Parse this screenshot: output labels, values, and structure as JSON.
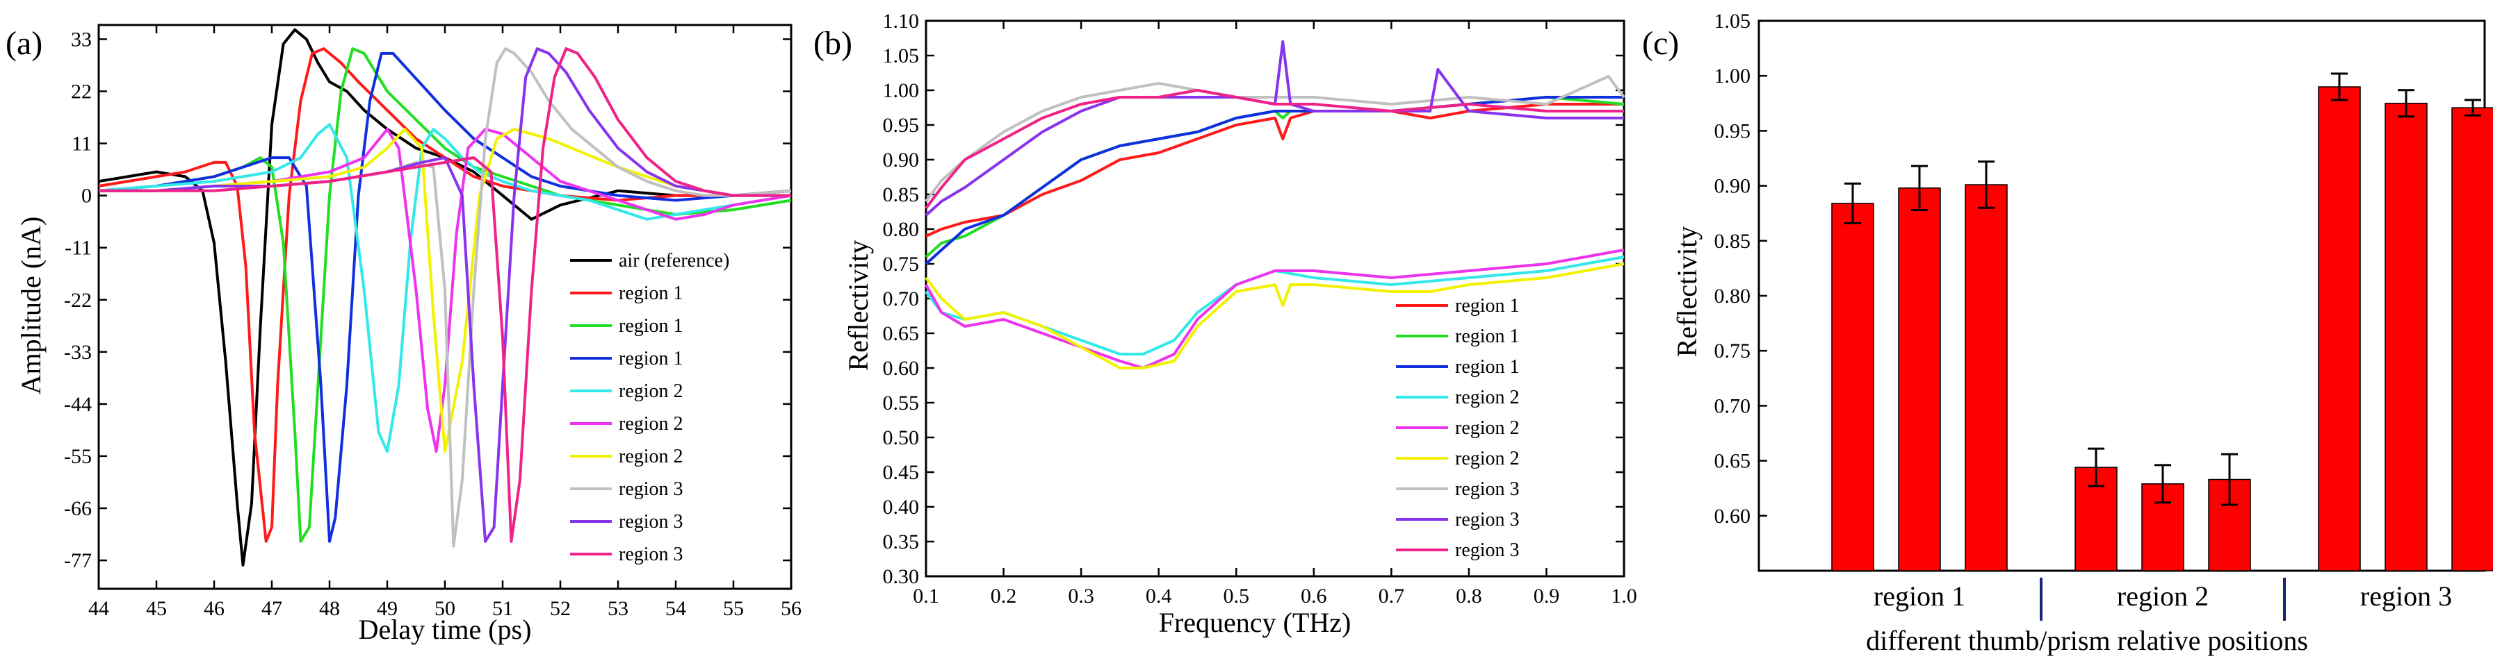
{
  "colors": {
    "black": "#000000",
    "red": "#ff1a1a",
    "green": "#22dd22",
    "blue": "#1030e0",
    "cyan": "#33e8e8",
    "magenta": "#ee33ee",
    "yellow": "#f2f200",
    "gray": "#c0c0c0",
    "purple": "#8833ee",
    "pink": "#ee2288",
    "bar": "#ff0000",
    "divider": "#1a237e"
  },
  "chart_data": [
    {
      "type": "line",
      "panel_label": "(a)",
      "xlabel": "Delay time (ps)",
      "ylabel": "Amplitude (nA)",
      "xlim": [
        44,
        56
      ],
      "ylim": [
        -83,
        36
      ],
      "xticks": [
        44,
        45,
        46,
        47,
        48,
        49,
        50,
        51,
        52,
        53,
        54,
        55,
        56
      ],
      "yticks": [
        33,
        22,
        11,
        0,
        -11,
        -22,
        -33,
        -44,
        -55,
        -66,
        -77
      ],
      "legend_position": "lower-right",
      "series": [
        {
          "name": "air (reference)",
          "color": "black",
          "x": [
            44.0,
            44.5,
            45.0,
            45.5,
            45.8,
            46.0,
            46.2,
            46.4,
            46.5,
            46.65,
            46.8,
            47.0,
            47.2,
            47.4,
            47.6,
            47.8,
            48.0,
            48.3,
            48.6,
            49.0,
            49.5,
            50.0,
            50.5,
            51.0,
            51.5,
            52.0,
            53.0,
            54.0,
            55.0,
            56.0
          ],
          "y": [
            3,
            4,
            5,
            4,
            1,
            -10,
            -35,
            -65,
            -78,
            -65,
            -28,
            15,
            32,
            35,
            33,
            28,
            24,
            22,
            18,
            14,
            10,
            8,
            5,
            0,
            -5,
            -2,
            1,
            0,
            0,
            1
          ]
        },
        {
          "name": "region 1",
          "color": "red",
          "x": [
            44.0,
            45.0,
            45.5,
            46.0,
            46.2,
            46.4,
            46.55,
            46.7,
            46.9,
            47.0,
            47.1,
            47.3,
            47.5,
            47.7,
            47.9,
            48.2,
            48.5,
            49.0,
            49.5,
            50.0,
            50.5,
            51.0,
            52.0,
            53.0,
            54.0,
            55.0,
            56.0
          ],
          "y": [
            2,
            4,
            5,
            7,
            7,
            2,
            -15,
            -50,
            -73,
            -70,
            -40,
            0,
            20,
            30,
            31,
            28,
            24,
            18,
            12,
            8,
            4,
            2,
            0,
            -1,
            0,
            0,
            1
          ]
        },
        {
          "name": "region 1",
          "color": "green",
          "x": [
            44.0,
            45.0,
            46.0,
            46.5,
            46.8,
            47.0,
            47.2,
            47.4,
            47.5,
            47.65,
            47.8,
            48.0,
            48.2,
            48.4,
            48.6,
            48.8,
            49.0,
            49.5,
            50.0,
            50.5,
            51.0,
            51.5,
            52.0,
            53.0,
            54.0,
            55.0,
            56.0
          ],
          "y": [
            1,
            2,
            4,
            6,
            8,
            6,
            -10,
            -50,
            -73,
            -70,
            -40,
            0,
            22,
            31,
            30,
            26,
            22,
            16,
            10,
            6,
            4,
            2,
            0,
            -2,
            -4,
            -3,
            -1
          ]
        },
        {
          "name": "region 1",
          "color": "blue",
          "x": [
            44.0,
            45.0,
            46.0,
            46.5,
            47.0,
            47.3,
            47.6,
            47.85,
            48.0,
            48.1,
            48.3,
            48.5,
            48.7,
            48.9,
            49.1,
            49.4,
            49.7,
            50.0,
            50.5,
            51.0,
            51.5,
            52.0,
            53.0,
            54.0,
            55.0,
            56.0
          ],
          "y": [
            1,
            2,
            4,
            6,
            8,
            8,
            2,
            -40,
            -73,
            -68,
            -40,
            0,
            20,
            30,
            30,
            26,
            22,
            18,
            12,
            8,
            4,
            2,
            0,
            -1,
            0,
            1
          ]
        },
        {
          "name": "region 2",
          "color": "cyan",
          "x": [
            44.0,
            45.0,
            46.0,
            47.0,
            47.5,
            47.8,
            48.0,
            48.3,
            48.6,
            48.85,
            49.0,
            49.2,
            49.4,
            49.6,
            49.8,
            50.0,
            50.3,
            50.6,
            51.0,
            51.5,
            52.0,
            52.5,
            53.0,
            53.5,
            54.0,
            55.0,
            56.0
          ],
          "y": [
            1,
            2,
            3,
            5,
            8,
            13,
            15,
            8,
            -20,
            -50,
            -54,
            -40,
            -10,
            10,
            14,
            12,
            8,
            5,
            3,
            1,
            0,
            -1,
            -3,
            -5,
            -4,
            -2,
            0
          ]
        },
        {
          "name": "region 2",
          "color": "magenta",
          "x": [
            44.0,
            45.0,
            46.0,
            47.0,
            48.0,
            48.6,
            49.0,
            49.2,
            49.5,
            49.7,
            49.85,
            50.0,
            50.2,
            50.4,
            50.7,
            51.0,
            51.3,
            51.6,
            52.0,
            52.5,
            53.0,
            53.5,
            54.0,
            54.5,
            55.0,
            56.0
          ],
          "y": [
            1,
            1,
            2,
            3,
            5,
            8,
            14,
            10,
            -20,
            -45,
            -54,
            -40,
            -8,
            10,
            14,
            13,
            10,
            7,
            3,
            1,
            -1,
            -3,
            -5,
            -4,
            -2,
            0
          ]
        },
        {
          "name": "region 2",
          "color": "yellow",
          "x": [
            44.0,
            45.0,
            46.0,
            47.0,
            48.0,
            48.6,
            49.0,
            49.3,
            49.6,
            49.8,
            50.0,
            50.3,
            50.6,
            50.9,
            51.2,
            51.5,
            51.8,
            52.2,
            52.6,
            53.0,
            53.5,
            54.0,
            54.5,
            55.0,
            56.0
          ],
          "y": [
            1,
            1,
            2,
            3,
            4,
            6,
            10,
            14,
            10,
            -25,
            -54,
            -35,
            0,
            12,
            14,
            13,
            12,
            10,
            8,
            6,
            4,
            2,
            1,
            0,
            0
          ]
        },
        {
          "name": "region 3",
          "color": "gray",
          "x": [
            44.0,
            45.0,
            46.0,
            47.0,
            48.0,
            49.0,
            49.5,
            49.8,
            50.0,
            50.15,
            50.3,
            50.5,
            50.7,
            50.9,
            51.05,
            51.2,
            51.5,
            51.8,
            52.2,
            52.6,
            53.0,
            53.5,
            54.0,
            54.5,
            55.0,
            56.0
          ],
          "y": [
            1,
            1,
            2,
            2,
            3,
            5,
            7,
            6,
            -20,
            -74,
            -60,
            -20,
            12,
            28,
            31,
            30,
            26,
            20,
            14,
            10,
            6,
            3,
            1,
            0,
            0,
            1
          ]
        },
        {
          "name": "region 3",
          "color": "purple",
          "x": [
            44.0,
            45.0,
            46.0,
            47.0,
            48.0,
            49.0,
            49.6,
            50.0,
            50.3,
            50.5,
            50.7,
            50.85,
            51.0,
            51.2,
            51.4,
            51.6,
            51.8,
            52.1,
            52.5,
            53.0,
            53.5,
            54.0,
            54.5,
            55.0,
            56.0
          ],
          "y": [
            1,
            1,
            2,
            2,
            3,
            5,
            7,
            8,
            0,
            -40,
            -73,
            -70,
            -40,
            0,
            25,
            31,
            30,
            26,
            18,
            10,
            5,
            2,
            1,
            0,
            0
          ]
        },
        {
          "name": "region 3",
          "color": "pink",
          "x": [
            44.0,
            45.0,
            46.0,
            47.0,
            48.0,
            49.0,
            50.0,
            50.5,
            50.8,
            51.0,
            51.15,
            51.3,
            51.5,
            51.7,
            51.9,
            52.1,
            52.3,
            52.6,
            53.0,
            53.5,
            54.0,
            54.5,
            55.0,
            56.0
          ],
          "y": [
            1,
            1,
            1,
            2,
            3,
            5,
            7,
            8,
            5,
            -30,
            -73,
            -60,
            -20,
            10,
            25,
            31,
            30,
            25,
            16,
            8,
            3,
            1,
            0,
            0
          ]
        }
      ]
    },
    {
      "type": "line",
      "panel_label": "(b)",
      "xlabel": "Frequency (THz)",
      "ylabel": "Reflectivity",
      "xlim": [
        0.1,
        1.0
      ],
      "ylim": [
        0.3,
        1.1
      ],
      "xticks": [
        0.1,
        0.2,
        0.3,
        0.4,
        0.5,
        0.6,
        0.7,
        0.8,
        0.9,
        1.0
      ],
      "yticks": [
        1.1,
        1.05,
        1.0,
        0.95,
        0.9,
        0.85,
        0.8,
        0.75,
        0.7,
        0.65,
        0.6,
        0.55,
        0.5,
        0.45,
        0.4,
        0.35,
        0.3
      ],
      "legend_position": "lower-right",
      "series": [
        {
          "name": "region 1",
          "color": "red",
          "x": [
            0.1,
            0.12,
            0.15,
            0.2,
            0.25,
            0.3,
            0.35,
            0.4,
            0.45,
            0.5,
            0.55,
            0.56,
            0.57,
            0.6,
            0.7,
            0.75,
            0.8,
            0.9,
            1.0
          ],
          "y": [
            0.79,
            0.8,
            0.81,
            0.82,
            0.85,
            0.87,
            0.9,
            0.91,
            0.93,
            0.95,
            0.96,
            0.93,
            0.96,
            0.97,
            0.97,
            0.96,
            0.97,
            0.98,
            0.98
          ]
        },
        {
          "name": "region 1",
          "color": "green",
          "x": [
            0.1,
            0.12,
            0.15,
            0.2,
            0.25,
            0.3,
            0.35,
            0.4,
            0.45,
            0.5,
            0.55,
            0.56,
            0.57,
            0.6,
            0.7,
            0.8,
            0.9,
            1.0
          ],
          "y": [
            0.76,
            0.78,
            0.79,
            0.82,
            0.86,
            0.9,
            0.92,
            0.93,
            0.94,
            0.96,
            0.97,
            0.96,
            0.97,
            0.97,
            0.97,
            0.98,
            0.99,
            0.98
          ]
        },
        {
          "name": "region 1",
          "color": "blue",
          "x": [
            0.1,
            0.12,
            0.15,
            0.2,
            0.25,
            0.3,
            0.35,
            0.4,
            0.45,
            0.5,
            0.55,
            0.6,
            0.7,
            0.8,
            0.9,
            1.0
          ],
          "y": [
            0.75,
            0.77,
            0.8,
            0.82,
            0.86,
            0.9,
            0.92,
            0.93,
            0.94,
            0.96,
            0.97,
            0.97,
            0.97,
            0.98,
            0.99,
            0.99
          ]
        },
        {
          "name": "region 2",
          "color": "cyan",
          "x": [
            0.1,
            0.12,
            0.15,
            0.2,
            0.25,
            0.3,
            0.35,
            0.38,
            0.42,
            0.45,
            0.5,
            0.55,
            0.6,
            0.7,
            0.8,
            0.9,
            1.0
          ],
          "y": [
            0.71,
            0.68,
            0.67,
            0.68,
            0.66,
            0.64,
            0.62,
            0.62,
            0.64,
            0.68,
            0.72,
            0.74,
            0.73,
            0.72,
            0.73,
            0.74,
            0.76
          ]
        },
        {
          "name": "region 2",
          "color": "magenta",
          "x": [
            0.1,
            0.12,
            0.15,
            0.2,
            0.25,
            0.3,
            0.35,
            0.38,
            0.42,
            0.45,
            0.5,
            0.55,
            0.6,
            0.7,
            0.8,
            0.9,
            1.0
          ],
          "y": [
            0.72,
            0.68,
            0.66,
            0.67,
            0.65,
            0.63,
            0.61,
            0.6,
            0.62,
            0.67,
            0.72,
            0.74,
            0.74,
            0.73,
            0.74,
            0.75,
            0.77
          ]
        },
        {
          "name": "region 2",
          "color": "yellow",
          "x": [
            0.1,
            0.12,
            0.15,
            0.2,
            0.25,
            0.3,
            0.35,
            0.38,
            0.42,
            0.45,
            0.5,
            0.55,
            0.56,
            0.57,
            0.6,
            0.7,
            0.75,
            0.8,
            0.9,
            1.0
          ],
          "y": [
            0.73,
            0.7,
            0.67,
            0.68,
            0.66,
            0.63,
            0.6,
            0.6,
            0.61,
            0.66,
            0.71,
            0.72,
            0.69,
            0.72,
            0.72,
            0.71,
            0.71,
            0.72,
            0.73,
            0.75
          ]
        },
        {
          "name": "region 3",
          "color": "gray",
          "x": [
            0.1,
            0.12,
            0.15,
            0.2,
            0.25,
            0.3,
            0.35,
            0.4,
            0.45,
            0.5,
            0.55,
            0.6,
            0.7,
            0.8,
            0.9,
            0.98,
            1.0
          ],
          "y": [
            0.84,
            0.87,
            0.9,
            0.94,
            0.97,
            0.99,
            1.0,
            1.01,
            1.0,
            0.99,
            0.99,
            0.99,
            0.98,
            0.99,
            0.98,
            1.02,
            0.99
          ]
        },
        {
          "name": "region 3",
          "color": "purple",
          "x": [
            0.1,
            0.12,
            0.15,
            0.2,
            0.25,
            0.3,
            0.35,
            0.4,
            0.45,
            0.5,
            0.55,
            0.56,
            0.57,
            0.6,
            0.7,
            0.75,
            0.76,
            0.8,
            0.9,
            1.0
          ],
          "y": [
            0.82,
            0.84,
            0.86,
            0.9,
            0.94,
            0.97,
            0.99,
            0.99,
            0.99,
            0.99,
            0.98,
            1.07,
            0.98,
            0.97,
            0.97,
            0.97,
            1.03,
            0.97,
            0.96,
            0.96
          ]
        },
        {
          "name": "region 3",
          "color": "pink",
          "x": [
            0.1,
            0.12,
            0.15,
            0.2,
            0.25,
            0.3,
            0.35,
            0.4,
            0.45,
            0.5,
            0.55,
            0.6,
            0.7,
            0.8,
            0.9,
            1.0
          ],
          "y": [
            0.83,
            0.86,
            0.9,
            0.93,
            0.96,
            0.98,
            0.99,
            0.99,
            1.0,
            0.99,
            0.98,
            0.98,
            0.97,
            0.98,
            0.97,
            0.97
          ]
        }
      ]
    },
    {
      "type": "bar",
      "panel_label": "(c)",
      "xlabel": "different thumb/prism relative positions",
      "ylabel": "Reflectivity",
      "ylim": [
        0.55,
        1.05
      ],
      "yticks": [
        1.05,
        1.0,
        0.95,
        0.9,
        0.85,
        0.8,
        0.75,
        0.7,
        0.65,
        0.6
      ],
      "groups": [
        {
          "label": "region 1",
          "values": [
            0.884,
            0.898,
            0.901
          ],
          "errors": [
            0.018,
            0.02,
            0.021
          ]
        },
        {
          "label": "region 2",
          "values": [
            0.644,
            0.629,
            0.633
          ],
          "errors": [
            0.017,
            0.017,
            0.023
          ]
        },
        {
          "label": "region 3",
          "values": [
            0.99,
            0.975,
            0.971
          ],
          "errors": [
            0.012,
            0.012,
            0.007
          ]
        }
      ]
    }
  ]
}
